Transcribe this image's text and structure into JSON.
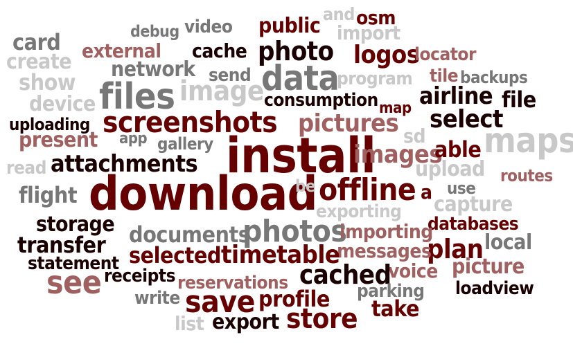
{
  "palette": {
    "dark": "#660000",
    "black": "#1a0000",
    "mauve": "#a06060",
    "grey": "#777777",
    "light": "#c8c8c8"
  },
  "words": [
    {
      "text": "and",
      "color": "light"
    },
    {
      "text": "osm",
      "color": "dark"
    },
    {
      "text": "public",
      "color": "dark"
    },
    {
      "text": "import",
      "color": "light"
    },
    {
      "text": "video",
      "color": "grey"
    },
    {
      "text": "debug",
      "color": "grey"
    },
    {
      "text": "card",
      "color": "grey"
    },
    {
      "text": "external",
      "color": "mauve"
    },
    {
      "text": "create",
      "color": "light"
    },
    {
      "text": "cache",
      "color": "black"
    },
    {
      "text": "photo",
      "color": "black"
    },
    {
      "text": "logos",
      "color": "dark"
    },
    {
      "text": "locator",
      "color": "mauve"
    },
    {
      "text": "network",
      "color": "grey"
    },
    {
      "text": "data",
      "color": "grey"
    },
    {
      "text": "send",
      "color": "grey"
    },
    {
      "text": "program",
      "color": "light"
    },
    {
      "text": "tile",
      "color": "mauve"
    },
    {
      "text": "backups",
      "color": "grey"
    },
    {
      "text": "show",
      "color": "light"
    },
    {
      "text": "image",
      "color": "light"
    },
    {
      "text": "files",
      "color": "grey"
    },
    {
      "text": "airline",
      "color": "black"
    },
    {
      "text": "file",
      "color": "black"
    },
    {
      "text": "consumption",
      "color": "black"
    },
    {
      "text": "device",
      "color": "light"
    },
    {
      "text": "map",
      "color": "dark"
    },
    {
      "text": "uploading",
      "color": "black"
    },
    {
      "text": "screenshots",
      "color": "dark"
    },
    {
      "text": "pictures",
      "color": "mauve"
    },
    {
      "text": "select",
      "color": "black"
    },
    {
      "text": "sd",
      "color": "light"
    },
    {
      "text": "maps",
      "color": "light"
    },
    {
      "text": "present",
      "color": "mauve"
    },
    {
      "text": "app",
      "color": "grey"
    },
    {
      "text": "gallery",
      "color": "grey"
    },
    {
      "text": "install",
      "color": "dark"
    },
    {
      "text": "images",
      "color": "mauve"
    },
    {
      "text": "able",
      "color": "dark"
    },
    {
      "text": "read",
      "color": "light"
    },
    {
      "text": "attachments",
      "color": "black"
    },
    {
      "text": "upload",
      "color": "light"
    },
    {
      "text": "routes",
      "color": "mauve"
    },
    {
      "text": "flight",
      "color": "grey"
    },
    {
      "text": "download",
      "color": "dark"
    },
    {
      "text": "be",
      "color": "light"
    },
    {
      "text": "offline",
      "color": "dark"
    },
    {
      "text": "a",
      "color": "dark"
    },
    {
      "text": "use",
      "color": "grey"
    },
    {
      "text": "capture",
      "color": "light"
    },
    {
      "text": "exporting",
      "color": "light"
    },
    {
      "text": "storage",
      "color": "black"
    },
    {
      "text": "databases",
      "color": "dark"
    },
    {
      "text": "documents",
      "color": "grey"
    },
    {
      "text": "photos",
      "color": "grey"
    },
    {
      "text": "importing",
      "color": "mauve"
    },
    {
      "text": "transfer",
      "color": "black"
    },
    {
      "text": "local",
      "color": "grey"
    },
    {
      "text": "plan",
      "color": "dark"
    },
    {
      "text": "messages",
      "color": "mauve"
    },
    {
      "text": "selected",
      "color": "dark"
    },
    {
      "text": "timetable",
      "color": "dark"
    },
    {
      "text": "statement",
      "color": "black"
    },
    {
      "text": "picture",
      "color": "mauve"
    },
    {
      "text": "voice",
      "color": "mauve"
    },
    {
      "text": "cached",
      "color": "black"
    },
    {
      "text": "see",
      "color": "mauve"
    },
    {
      "text": "receipts",
      "color": "black"
    },
    {
      "text": "reservations",
      "color": "mauve"
    },
    {
      "text": "parking",
      "color": "grey"
    },
    {
      "text": "loadview",
      "color": "black"
    },
    {
      "text": "write",
      "color": "grey"
    },
    {
      "text": "save",
      "color": "dark"
    },
    {
      "text": "profile",
      "color": "dark"
    },
    {
      "text": "take",
      "color": "dark"
    },
    {
      "text": "list",
      "color": "light"
    },
    {
      "text": "export",
      "color": "black"
    },
    {
      "text": "store",
      "color": "dark"
    }
  ]
}
